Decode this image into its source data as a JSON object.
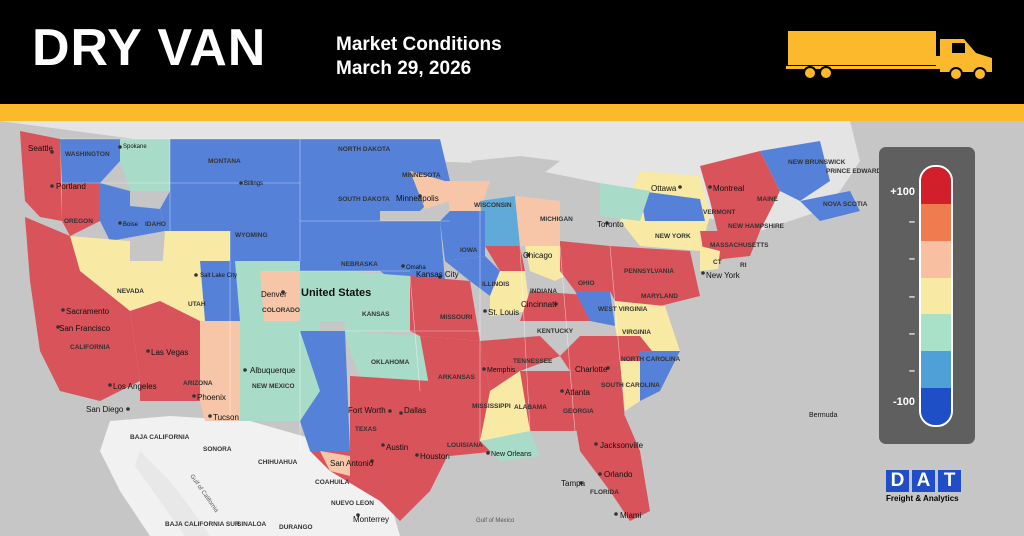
{
  "header": {
    "title": "DRY VAN",
    "subtitle_line1": "Market Conditions",
    "subtitle_line2": "March 29, 2026"
  },
  "colors": {
    "header_bg": "#000000",
    "accent_bar": "#fbb92b",
    "truck": "#fbb92b",
    "very_hot": "#d11f2b",
    "hot": "#ee7c4f",
    "warm": "#f8bfa0",
    "neutral": "#f8e9a5",
    "cool": "#a8e0c8",
    "cold": "#4fa0d6",
    "very_cold": "#1f4fc6",
    "logo_blue": "#1f4ec8"
  },
  "legend": {
    "top_label": "+100",
    "bottom_label": "-100",
    "tick_label": "–",
    "swatches": [
      "#d11f2b",
      "#ee7c4f",
      "#f8bfa0",
      "#f8e9a5",
      "#a8e0c8",
      "#4fa0d6",
      "#1f4fc6"
    ]
  },
  "map": {
    "country_label": "United States",
    "states": [
      "WASHINGTON",
      "MONTANA",
      "NORTH DAKOTA",
      "MINNESOTA",
      "SOUTH DAKOTA",
      "WISCONSIN",
      "MICHIGAN",
      "OREGON",
      "IDAHO",
      "WYOMING",
      "NEBRASKA",
      "IOWA",
      "ILLINOIS",
      "INDIANA",
      "OHIO",
      "PENNSYLVANIA",
      "NEW YORK",
      "VERMONT",
      "MAINE",
      "NEW HAMPSHIRE",
      "MASSACHUSETTS",
      "CT",
      "RI",
      "NEVADA",
      "UTAH",
      "COLORADO",
      "KANSAS",
      "MISSOURI",
      "KENTUCKY",
      "WEST VIRGINIA",
      "VIRGINIA",
      "MARYLAND",
      "CALIFORNIA",
      "ARIZONA",
      "NEW MEXICO",
      "OKLAHOMA",
      "ARKANSAS",
      "TENNESSEE",
      "NORTH CAROLINA",
      "SOUTH CAROLINA",
      "MISSISSIPPI",
      "ALABAMA",
      "GEORGIA",
      "TEXAS",
      "LOUISIANA",
      "FLORIDA",
      "NEW BRUNSWICK",
      "PRINCE EDWARD ISLAND",
      "NOVA SCOTIA",
      "BAJA CALIFORNIA",
      "SONORA",
      "CHIHUAHUA",
      "COAHUILA",
      "NUEVO LEON",
      "BAJA CALIFORNIA SUR",
      "SINALOA",
      "DURANGO"
    ],
    "cities": [
      "Seattle",
      "Spokane",
      "Portland",
      "Boise",
      "Billings",
      "Minneapolis",
      "Salt Lake City",
      "Denver",
      "Omaha",
      "Chicago",
      "Kansas City",
      "St. Louis",
      "Cincinnati",
      "Sacramento",
      "San Francisco",
      "Las Vegas",
      "Los Angeles",
      "San Diego",
      "Phoenix",
      "Tucson",
      "Albuquerque",
      "Fort Worth",
      "Dallas",
      "Austin",
      "San Antonio",
      "Houston",
      "Memphis",
      "New Orleans",
      "Atlanta",
      "Charlotte",
      "Jacksonville",
      "Orlando",
      "Tampa",
      "Miami",
      "Toronto",
      "Ottawa",
      "Montreal",
      "New York",
      "Monterrey",
      "Bermuda"
    ],
    "water": [
      "Gulf of California",
      "Gulf of Mexico"
    ]
  },
  "logo": {
    "letters": [
      "D",
      "A",
      "T"
    ],
    "tagline": "Freight & Analytics"
  }
}
